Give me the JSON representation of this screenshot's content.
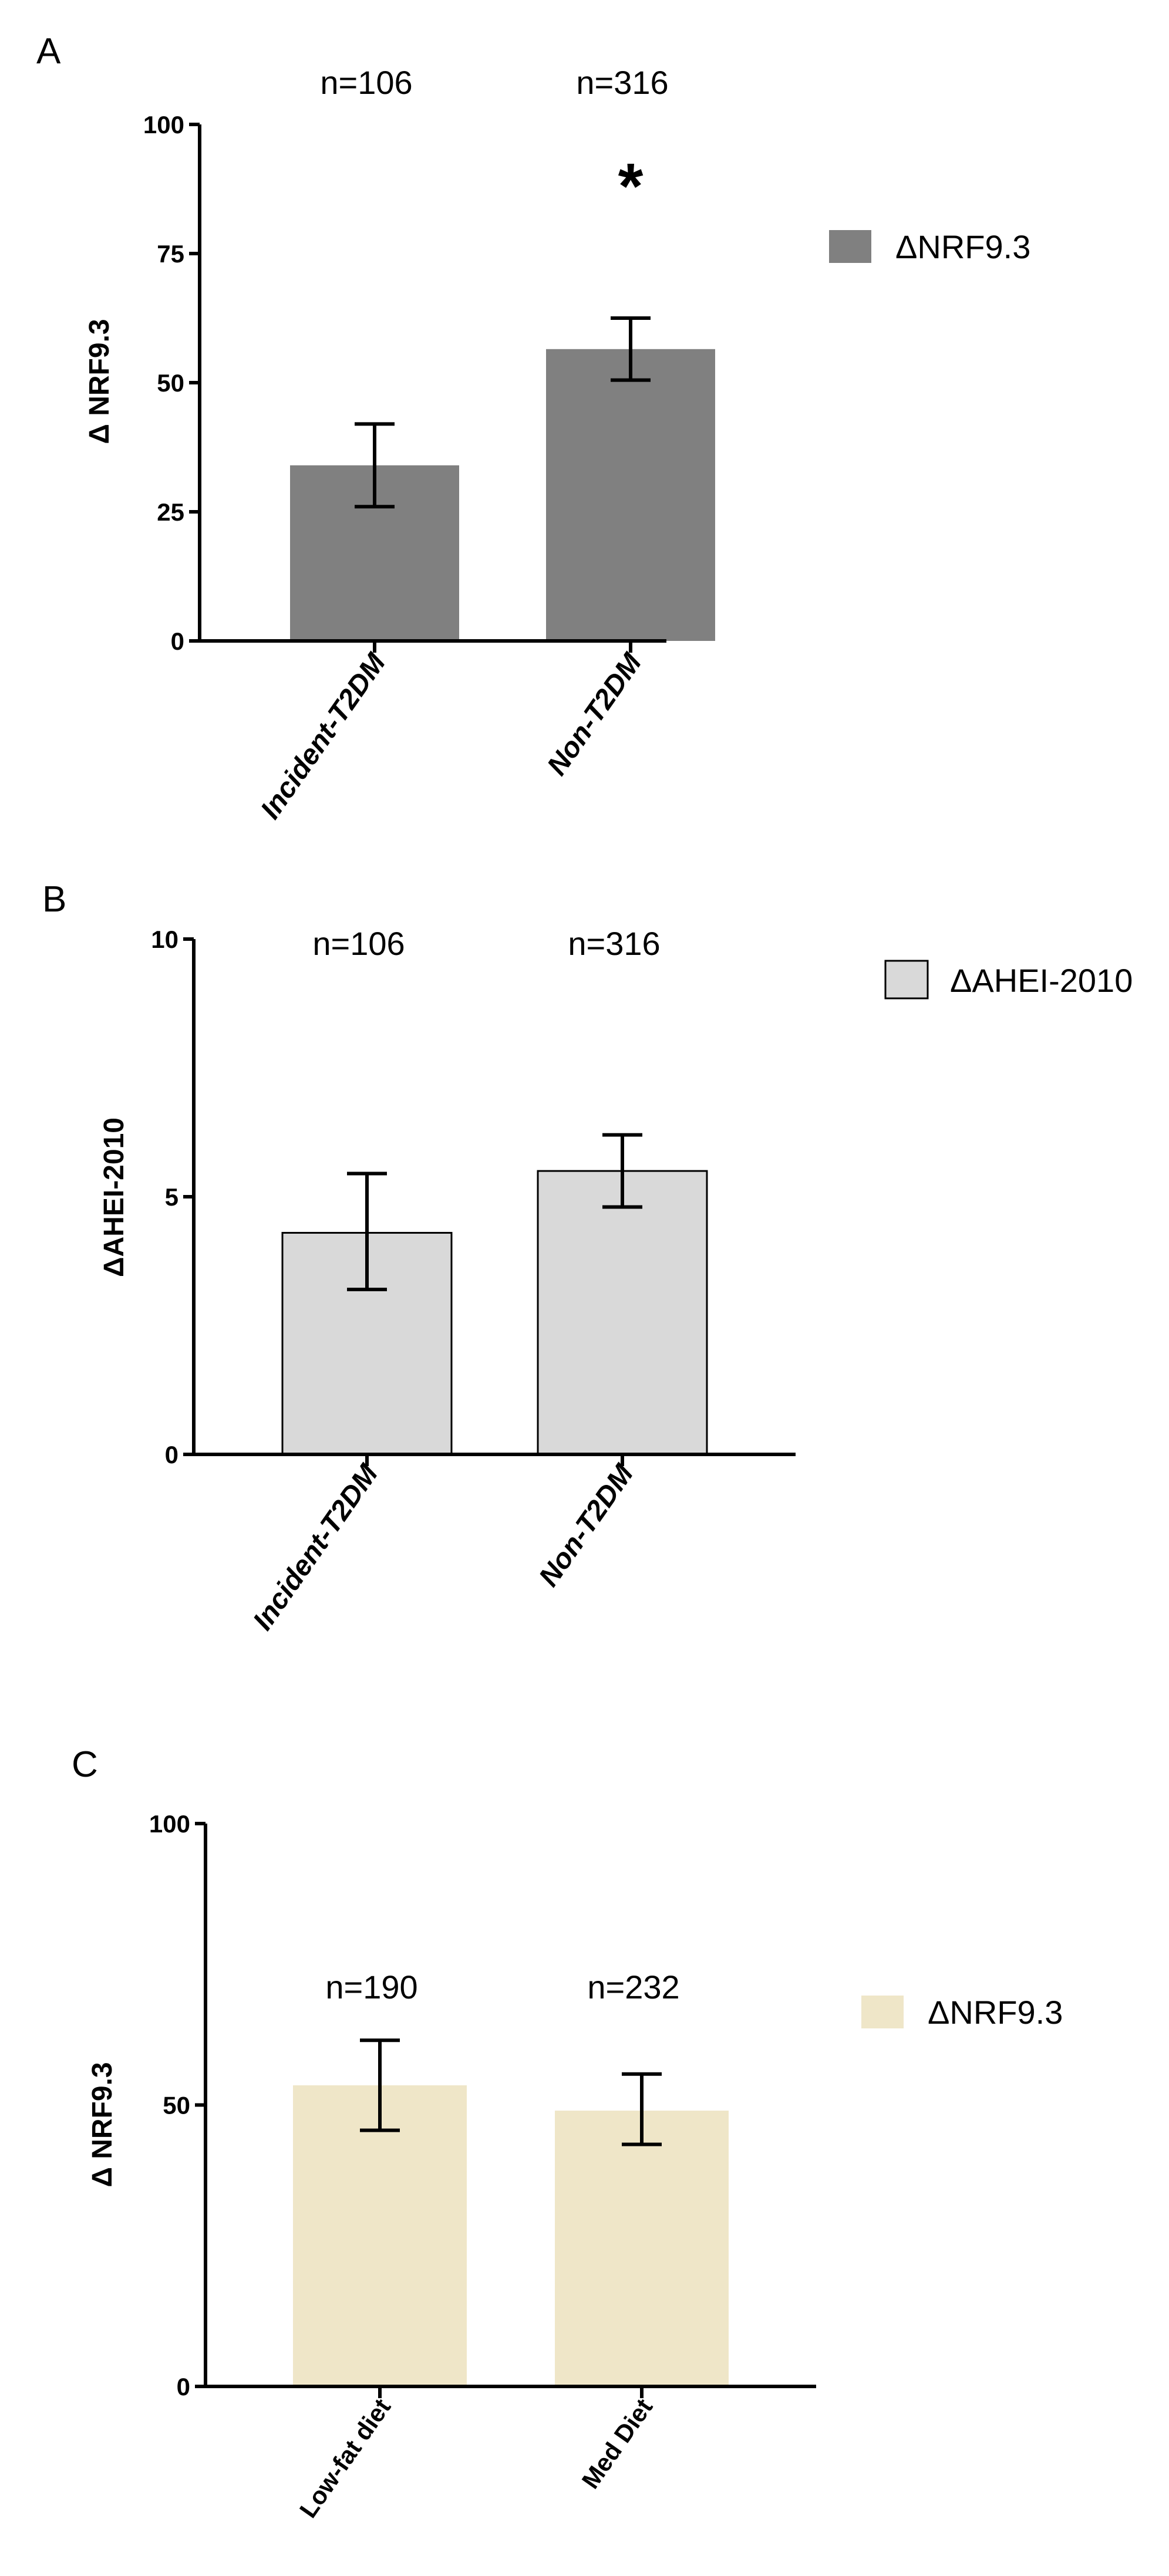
{
  "chart_data": [
    {
      "type": "bar",
      "panel_label": "A",
      "categories": [
        "Incident-T2DM",
        "Non-T2DM"
      ],
      "values": [
        34,
        56.5
      ],
      "error_low": [
        26,
        50.5
      ],
      "error_high": [
        42,
        62.5
      ],
      "n_labels": [
        "n=106",
        "n=316"
      ],
      "significance": [
        "",
        "*"
      ],
      "ylabel": "Δ NRF9.3",
      "ylim": [
        0,
        100
      ],
      "yticks": [
        "0",
        "25",
        "50",
        "75",
        "100"
      ],
      "legend": [
        "ΔNRF9.3"
      ],
      "legend_position": "right",
      "colors": {
        "bar": "#808080",
        "edge": "none"
      },
      "category_style": "italic"
    },
    {
      "type": "bar",
      "panel_label": "B",
      "categories": [
        "Incident-T2DM",
        "Non-T2DM"
      ],
      "values": [
        4.3,
        5.5
      ],
      "error_low": [
        3.2,
        4.8
      ],
      "error_high": [
        5.45,
        6.2
      ],
      "n_labels": [
        "n=106",
        "n=316"
      ],
      "significance": [
        "",
        ""
      ],
      "ylabel": "ΔAHEI-2010",
      "ylim": [
        0,
        10
      ],
      "yticks": [
        "0",
        "5",
        "10"
      ],
      "legend": [
        "ΔAHEI-2010"
      ],
      "legend_position": "right",
      "colors": {
        "bar": "#d9d9d9",
        "edge": "#000000"
      },
      "category_style": "italic"
    },
    {
      "type": "bar",
      "panel_label": "C",
      "categories": [
        "Low-fat diet",
        "Med Diet"
      ],
      "values": [
        53.5,
        49
      ],
      "error_low": [
        45.5,
        43
      ],
      "error_high": [
        61.5,
        55.5
      ],
      "n_labels": [
        "n=190",
        "n=232"
      ],
      "significance": [
        "",
        ""
      ],
      "ylabel": "Δ NRF9.3",
      "ylim": [
        0,
        100
      ],
      "yticks": [
        "0",
        "50",
        "100"
      ],
      "legend": [
        "ΔNRF9.3"
      ],
      "legend_position": "right",
      "colors": {
        "bar": "#efe6c8",
        "edge": "none"
      },
      "category_style": "normal"
    }
  ]
}
